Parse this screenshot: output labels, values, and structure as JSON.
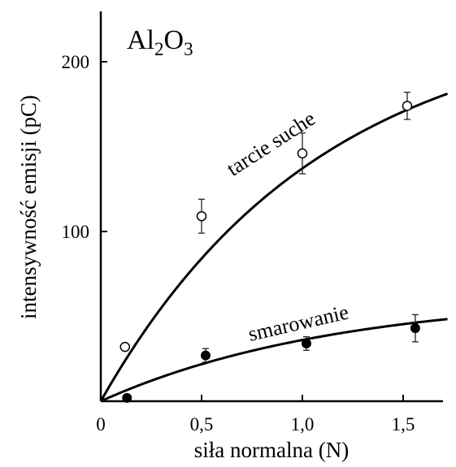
{
  "chart_data": {
    "type": "scatter",
    "title": {
      "prefix": "Al",
      "sub1": "2",
      "mid": "O",
      "sub2": "3"
    },
    "xlabel": "siła normalna (N)",
    "ylabel": "intensywność emisji (pC)",
    "xlim": [
      0,
      1.72
    ],
    "ylim": [
      0,
      227
    ],
    "x_ticks": [
      {
        "value": 0,
        "label": "0"
      },
      {
        "value": 0.5,
        "label": "0,5"
      },
      {
        "value": 1.0,
        "label": "1,0"
      },
      {
        "value": 1.5,
        "label": "1,5"
      }
    ],
    "y_ticks": [
      {
        "value": 100,
        "label": "100"
      },
      {
        "value": 200,
        "label": "200"
      }
    ],
    "grid": false,
    "series": [
      {
        "name": "tarcie suche",
        "marker": "open-circle",
        "color": "#000000",
        "points": [
          {
            "x": 0.12,
            "y": 32,
            "err": 0
          },
          {
            "x": 0.5,
            "y": 109,
            "err": 10
          },
          {
            "x": 1.0,
            "y": 146,
            "err": 12
          },
          {
            "x": 1.52,
            "y": 174,
            "err": 8
          }
        ],
        "fit": {
          "model": "saturating",
          "a": 228,
          "k": 0.92
        }
      },
      {
        "name": "smarowanie",
        "marker": "filled-circle",
        "color": "#000000",
        "points": [
          {
            "x": 0.13,
            "y": 2,
            "err": 0
          },
          {
            "x": 0.52,
            "y": 27,
            "err": 4
          },
          {
            "x": 1.02,
            "y": 34,
            "err": 4
          },
          {
            "x": 1.56,
            "y": 43,
            "err": 8
          }
        ],
        "fit": {
          "model": "saturating",
          "a": 63,
          "k": 0.85
        }
      }
    ]
  }
}
